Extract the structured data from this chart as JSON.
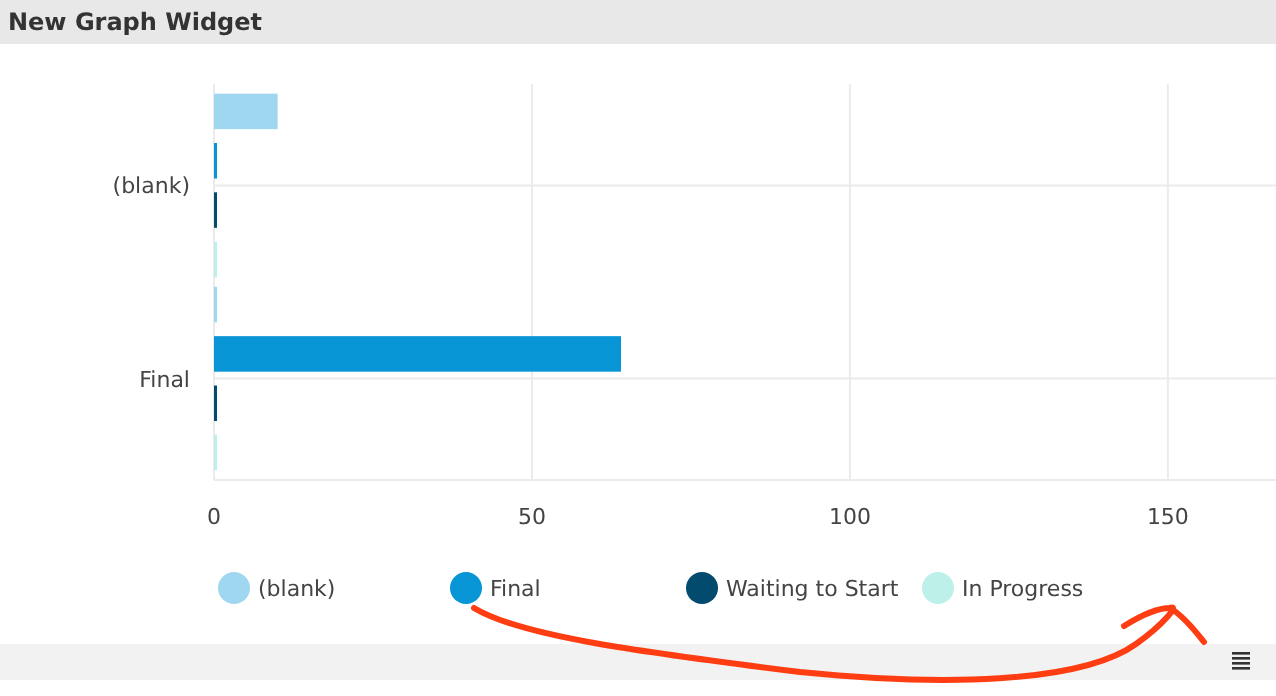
{
  "chart_data": {
    "type": "bar",
    "orientation": "horizontal",
    "title": "New Graph Widget",
    "categories": [
      "(blank)",
      "Final"
    ],
    "series": [
      {
        "name": "(blank)",
        "color": "#9fd6f0",
        "values": [
          10,
          0
        ]
      },
      {
        "name": "Final",
        "color": "#0795d6",
        "values": [
          0,
          64
        ]
      },
      {
        "name": "Waiting to Start",
        "color": "#024a6e",
        "values": [
          0,
          0
        ]
      },
      {
        "name": "In Progress",
        "color": "#bdf0e8",
        "values": [
          0,
          0
        ]
      }
    ],
    "xlim": [
      0,
      167
    ],
    "xticks": [
      0,
      50,
      100,
      150
    ],
    "grid": true,
    "legend": "bottom"
  }
}
